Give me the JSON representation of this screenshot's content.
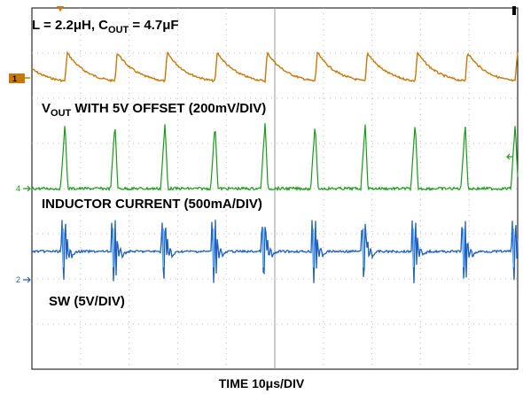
{
  "title_parts": {
    "prefix": "L = 2.2μH, C",
    "sub": "OUT",
    "suffix": " = 4.7μF"
  },
  "traces": {
    "vout": {
      "label_prefix": "V",
      "label_sub": "OUT",
      "label_suffix": " WITH 5V OFFSET (200mV/DIV)",
      "marker": "1",
      "color": "#c8780a"
    },
    "il": {
      "label": "INDUCTOR CURRENT (500mA/DIV)",
      "marker": "4",
      "color": "#1a9a1a"
    },
    "sw": {
      "label": "SW (5V/DIV)",
      "marker": "2",
      "color": "#1f5fbf"
    }
  },
  "x_axis_label": "TIME 10μs/DIV",
  "chart_data": {
    "type": "line",
    "title": "L = 2.2μH, COUT = 4.7μF",
    "xlabel": "TIME 10μs/DIV",
    "grid": true,
    "x_divisions": 10,
    "y_divisions": 8,
    "x_range_us": [
      0,
      100
    ],
    "switching_period_us": 10.3,
    "pulse_times_us": [
      6.8,
      17.1,
      27.4,
      37.7,
      48.0,
      58.3,
      68.6,
      78.9,
      89.2,
      99.5
    ],
    "series": [
      {
        "name": "V OUT WITH 5V OFFSET (200mV/DIV)",
        "channel": "1",
        "shape": "sawtooth: fast rise at each pulse, exponential decay",
        "amplitude_div": 0.7
      },
      {
        "name": "INDUCTOR CURRENT (500mA/DIV)",
        "channel": "4",
        "shape": "narrow triangular pulses from baseline",
        "amplitude_div": 1.45
      },
      {
        "name": "SW (5V/DIV)",
        "channel": "2",
        "shape": "baseline with ringing spikes at each pulse",
        "amplitude_div": 0.7
      }
    ]
  }
}
